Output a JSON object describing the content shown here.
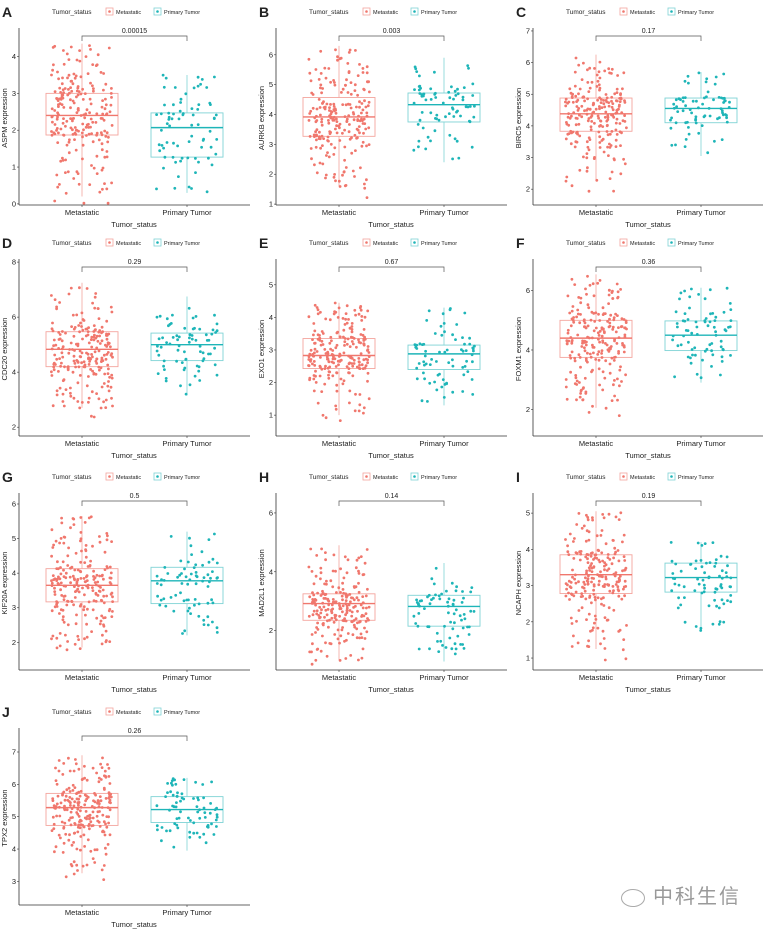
{
  "common": {
    "legend_title": "Tumor_status",
    "groups": [
      "Metastatic",
      "Primary Tumor"
    ],
    "x_title": "Tumor_status",
    "colors": {
      "Metastatic": "#F0776D",
      "Primary Tumor": "#1EB5B8"
    }
  },
  "watermark": {
    "right": "中科生信"
  },
  "chart_data": [
    {
      "type": "box",
      "panel": "A",
      "ylabel": "ASPM expression",
      "ylim": [
        -0.03,
        4.72
      ],
      "ticks": [
        0,
        1,
        2,
        3,
        4
      ],
      "p_value": "0.00015",
      "series": [
        {
          "name": "Metastatic",
          "whisker_low": 0.2,
          "q1": 1.87,
          "median": 2.4,
          "q3": 3.0,
          "whisker_high": 4.35
        },
        {
          "name": "Primary Tumor",
          "whisker_low": 0.3,
          "q1": 1.27,
          "median": 2.07,
          "q3": 2.47,
          "whisker_high": 3.5
        }
      ]
    },
    {
      "type": "box",
      "panel": "B",
      "ylabel": "AURKB expression",
      "ylim": [
        0.97,
        6.83
      ],
      "ticks": [
        1,
        2,
        3,
        4,
        5,
        6
      ],
      "p_value": "0.003",
      "series": [
        {
          "name": "Metastatic",
          "whisker_low": 1.6,
          "q1": 3.27,
          "median": 3.92,
          "q3": 4.57,
          "whisker_high": 6.3
        },
        {
          "name": "Primary Tumor",
          "whisker_low": 2.4,
          "q1": 3.75,
          "median": 4.33,
          "q3": 4.72,
          "whisker_high": 5.9
        }
      ]
    },
    {
      "type": "box",
      "panel": "C",
      "ylabel": "BIRC5 expression",
      "ylim": [
        1.5,
        7.03
      ],
      "ticks": [
        2,
        3,
        4,
        5,
        6,
        7
      ],
      "p_value": "0.17",
      "series": [
        {
          "name": "Metastatic",
          "whisker_low": 2.25,
          "q1": 3.83,
          "median": 4.38,
          "q3": 4.88,
          "whisker_high": 6.25
        },
        {
          "name": "Primary Tumor",
          "whisker_low": 3.05,
          "q1": 4.1,
          "median": 4.55,
          "q3": 4.88,
          "whisker_high": 5.7
        }
      ]
    },
    {
      "type": "box",
      "panel": "D",
      "ylabel": "CDC20 expression",
      "ylim": [
        1.68,
        8.04
      ],
      "ticks": [
        2,
        4,
        6,
        8
      ],
      "p_value": "0.29",
      "series": [
        {
          "name": "Metastatic",
          "whisker_low": 2.7,
          "q1": 4.2,
          "median": 4.83,
          "q3": 5.47,
          "whisker_high": 7.25
        },
        {
          "name": "Primary Tumor",
          "whisker_low": 3.15,
          "q1": 4.42,
          "median": 5.0,
          "q3": 5.42,
          "whisker_high": 6.75
        }
      ]
    },
    {
      "type": "box",
      "panel": "E",
      "ylabel": "EXO1 expression",
      "ylim": [
        0.36,
        5.73
      ],
      "ticks": [
        1,
        2,
        3,
        4,
        5
      ],
      "p_value": "0.67",
      "series": [
        {
          "name": "Metastatic",
          "whisker_low": 1.0,
          "q1": 2.43,
          "median": 2.83,
          "q3": 3.35,
          "whisker_high": 4.45
        },
        {
          "name": "Primary Tumor",
          "whisker_low": 1.3,
          "q1": 2.4,
          "median": 2.88,
          "q3": 3.15,
          "whisker_high": 4.3
        }
      ]
    },
    {
      "type": "box",
      "panel": "F",
      "ylabel": "FOXM1 expression",
      "ylim": [
        1.1,
        7.0
      ],
      "ticks": [
        2,
        4,
        6
      ],
      "p_value": "0.36",
      "series": [
        {
          "name": "Metastatic",
          "whisker_low": 2.05,
          "q1": 3.75,
          "median": 4.4,
          "q3": 5.0,
          "whisker_high": 6.55
        },
        {
          "name": "Primary Tumor",
          "whisker_low": 2.9,
          "q1": 3.98,
          "median": 4.5,
          "q3": 4.98,
          "whisker_high": 6.1
        }
      ]
    },
    {
      "type": "box",
      "panel": "G",
      "ylabel": "KIF20A expression",
      "ylim": [
        1.2,
        6.26
      ],
      "ticks": [
        2,
        3,
        4,
        5,
        6
      ],
      "p_value": "0.5",
      "series": [
        {
          "name": "Metastatic",
          "whisker_low": 1.85,
          "q1": 3.17,
          "median": 3.65,
          "q3": 4.13,
          "whisker_high": 5.65
        },
        {
          "name": "Primary Tumor",
          "whisker_low": 2.2,
          "q1": 3.12,
          "median": 3.78,
          "q3": 4.17,
          "whisker_high": 5.2
        }
      ]
    },
    {
      "type": "box",
      "panel": "H",
      "ylabel": "MAD2L1 expression",
      "ylim": [
        0.66,
        6.61
      ],
      "ticks": [
        2,
        4,
        6
      ],
      "p_value": "0.14",
      "series": [
        {
          "name": "Metastatic",
          "whisker_low": 1.0,
          "q1": 2.35,
          "median": 2.92,
          "q3": 3.25,
          "whisker_high": 4.9
        },
        {
          "name": "Primary Tumor",
          "whisker_low": 0.95,
          "q1": 2.15,
          "median": 2.82,
          "q3": 3.2,
          "whisker_high": 4.3
        }
      ]
    },
    {
      "type": "box",
      "panel": "I",
      "ylabel": "NCAPH expression",
      "ylim": [
        0.67,
        5.5
      ],
      "ticks": [
        1,
        2,
        3,
        4,
        5
      ],
      "p_value": "0.19",
      "series": [
        {
          "name": "Metastatic",
          "whisker_low": 1.25,
          "q1": 2.78,
          "median": 3.3,
          "q3": 3.85,
          "whisker_high": 5.05
        },
        {
          "name": "Primary Tumor",
          "whisker_low": 1.75,
          "q1": 2.82,
          "median": 3.22,
          "q3": 3.62,
          "whisker_high": 4.2
        }
      ]
    },
    {
      "type": "box",
      "panel": "J",
      "ylabel": "TPX2 expression",
      "ylim": [
        2.27,
        7.68
      ],
      "ticks": [
        3,
        4,
        5,
        6,
        7
      ],
      "p_value": "0.26",
      "series": [
        {
          "name": "Metastatic",
          "whisker_low": 3.25,
          "q1": 4.73,
          "median": 5.28,
          "q3": 5.72,
          "whisker_high": 6.9
        },
        {
          "name": "Primary Tumor",
          "whisker_low": 3.95,
          "q1": 4.82,
          "median": 5.22,
          "q3": 5.62,
          "whisker_high": 6.2
        }
      ]
    }
  ]
}
